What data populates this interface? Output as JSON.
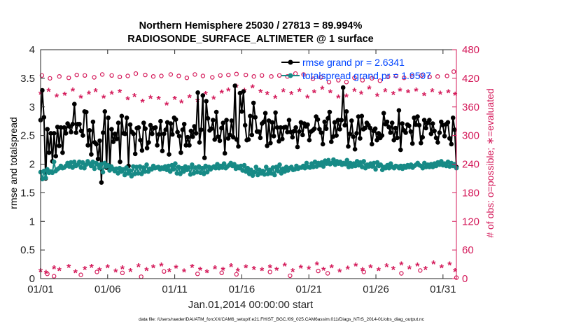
{
  "chart_data": {
    "type": "line",
    "title": "Northern Hemisphere 25030 / 27813 = 89.994%",
    "subtitle": "RADIOSONDE_SURFACE_ALTIMETER @ 1 surface",
    "xlabel": "Jan.01,2014 00:00:00 start",
    "ylabel": "rmse and totalspread",
    "ylabel_right": "# of obs: o=possible; ∗=evaluated",
    "footnote": "data file: /Users/raeder/DAI/ATM_forcXX/CAM6_setup/f.e21.FHIST_BGC.f09_025.CAM6assim.011/Diags_NTrS_2014-01/obs_diag_output.nc",
    "xlim": [
      0,
      31
    ],
    "ylim": [
      0,
      4
    ],
    "ylim_right": [
      0,
      480
    ],
    "xtick_values": [
      0,
      5,
      10,
      15,
      20,
      25,
      30
    ],
    "xtick_labels": [
      "01/01",
      "01/06",
      "01/11",
      "01/16",
      "01/21",
      "01/26",
      "01/31"
    ],
    "ytick_labels": [
      "0",
      "0.5",
      "1",
      "1.5",
      "2",
      "2.5",
      "3",
      "3.5",
      "4"
    ],
    "ytick_labels_right": [
      "0",
      "60",
      "120",
      "180",
      "240",
      "300",
      "360",
      "420",
      "480"
    ],
    "colors": {
      "rmse": "#000000",
      "spread": "#178a86",
      "obs": "#d41a5a",
      "legend_text": "#0044ff"
    },
    "series": [
      {
        "name": "rmse grand pr = 2.6341",
        "values": [
          2.77,
          3.29,
          2.82,
          1.75,
          2.61,
          2.2,
          2.54,
          2.05,
          2.54,
          2.14,
          2.65,
          2.32,
          2.64,
          2.2,
          2.64,
          2.54,
          2.71,
          2.66,
          2.56,
          2.7,
          3.05,
          2.55,
          2.7,
          2.7,
          2.58,
          2.5,
          2.92,
          2.91,
          2.33,
          2.59,
          2.17,
          2.74,
          2.38,
          2.35,
          2.09,
          2.41,
          1.68,
          2.55,
          2.92,
          1.94,
          2.81,
          1.92,
          2.61,
          2.39,
          2.53,
          2.44,
          2.72,
          2.04,
          2.84,
          2.54,
          2.53,
          2.81,
          1.97,
          2.69,
          2.56,
          2.53,
          2.18,
          2.63,
          2.64,
          2.42,
          2.24,
          2.72,
          2.62,
          2.28,
          2.38,
          2.68,
          2.53,
          2.63,
          2.64,
          2.33,
          2.52,
          2.75,
          2.23,
          2.53,
          2.6,
          2.73,
          2.17,
          2.71,
          2.52,
          2.81,
          2.78,
          2.56,
          2.49,
          2.2,
          2.6,
          2.7,
          2.33,
          2.47,
          2.33,
          2.58,
          2.48,
          2.66,
          2.54,
          3.25,
          2.38,
          2.6,
          3.2,
          2.11,
          3.1,
          2.8,
          2.59,
          2.62,
          2.77,
          2.43,
          2.91,
          2.48,
          2.41,
          2.63,
          2.72,
          2.19,
          2.77,
          2.45,
          2.51,
          2.76,
          2.47,
          3.37,
          2.43,
          2.31,
          3.24,
          2.92,
          3.27,
          2.68,
          2.42,
          2.43,
          2.84,
          2.51,
          3.07,
          2.82,
          2.57,
          2.57,
          2.46,
          2.71,
          2.74,
          2.89,
          2.32,
          2.76,
          2.37,
          2.73,
          2.49,
          2.9,
          2.64,
          2.4,
          2.64,
          2.44,
          2.64,
          2.65,
          2.56,
          2.77,
          2.56,
          2.47,
          2.58,
          2.64,
          2.3,
          2.57,
          2.73,
          2.51,
          2.71,
          2.66,
          2.69,
          2.42,
          2.57,
          2.59,
          2.62,
          2.83,
          2.78,
          2.61,
          2.55,
          2.35,
          2.74,
          2.62,
          2.8,
          2.91,
          2.39,
          2.48,
          2.73,
          2.5,
          2.77,
          2.61,
          2.77,
          3.34,
          2.68,
          2.92,
          2.31,
          2.53,
          2.76,
          2.48,
          2.26,
          2.54,
          2.83,
          2.45,
          2.84,
          2.61,
          2.63,
          2.72,
          2.68,
          2.63,
          2.35,
          2.58,
          2.62,
          2.42,
          2.54,
          2.46,
          2.5,
          2.89,
          2.7,
          2.74,
          2.65,
          2.55,
          2.72,
          2.42,
          2.63,
          2.46,
          2.94,
          2.25,
          2.71,
          2.59,
          2.55,
          2.69,
          2.67,
          2.57,
          2.36,
          2.81,
          2.69,
          2.83,
          2.68,
          2.37,
          2.47,
          2.77,
          2.63,
          2.72,
          2.77,
          2.53,
          2.71,
          2.58,
          2.46,
          2.38,
          2.55,
          2.74,
          2.68,
          2.49,
          2.7,
          2.73,
          2.45,
          2.35,
          2.81,
          2.6,
          1.95
        ]
      },
      {
        "name": "totalspread grand pr = 1.9597",
        "values": [
          1.86,
          1.74,
          1.88,
          1.76,
          1.91,
          1.85,
          1.87,
          1.85,
          2.04,
          1.88,
          1.91,
          1.93,
          1.97,
          1.93,
          1.94,
          1.97,
          2.02,
          1.96,
          2.03,
          1.94,
          2.04,
          1.97,
          1.99,
          2.04,
          1.94,
          2.03,
          1.93,
          1.99,
          2.05,
          2.01,
          1.97,
          2.04,
          1.92,
          2.02,
          1.99,
          1.93,
          2.0,
          1.86,
          2.02,
          1.96,
          1.98,
          1.89,
          1.96,
          1.92,
          1.88,
          1.92,
          1.84,
          1.93,
          1.87,
          1.91,
          1.81,
          1.94,
          1.84,
          1.89,
          1.79,
          1.96,
          1.83,
          1.95,
          1.84,
          1.96,
          1.83,
          1.94,
          1.87,
          1.99,
          1.87,
          1.92,
          1.91,
          1.97,
          1.93,
          1.94,
          1.95,
          1.91,
          1.94,
          1.92,
          1.96,
          1.9,
          1.97,
          1.87,
          1.98,
          1.91,
          2.01,
          1.84,
          1.95,
          1.83,
          1.93,
          1.87,
          1.96,
          1.9,
          1.94,
          1.82,
          1.99,
          1.84,
          1.94,
          1.86,
          1.96,
          1.85,
          1.93,
          1.83,
          1.97,
          1.86,
          1.95,
          1.91,
          1.94,
          1.96,
          1.93,
          2.0,
          1.93,
          1.97,
          1.94,
          2.01,
          1.93,
          1.96,
          1.98,
          2.02,
          1.97,
          2.0,
          1.92,
          1.96,
          1.93,
          1.97,
          1.89,
          1.98,
          1.87,
          1.93,
          1.83,
          1.9,
          1.8,
          1.86,
          1.95,
          1.81,
          1.9,
          1.84,
          1.88,
          1.82,
          1.95,
          1.83,
          1.9,
          1.84,
          1.94,
          1.81,
          1.95,
          1.88,
          1.99,
          1.84,
          1.92,
          1.87,
          1.95,
          1.89,
          1.93,
          1.95,
          1.9,
          1.91,
          1.97,
          1.92,
          1.94,
          1.94,
          1.97,
          1.93,
          2.02,
          1.95,
          1.94,
          2.01,
          1.95,
          2.04,
          1.96,
          2.02,
          1.98,
          2.03,
          1.96,
          2.06,
          2.01,
          2.07,
          2.0,
          2.02,
          2.08,
          1.99,
          2.05,
          2.01,
          2.04,
          1.99,
          2.02,
          2.0,
          2.07,
          1.95,
          2.02,
          1.96,
          2.01,
          1.97,
          2.05,
          1.98,
          2.03,
          1.95,
          2.05,
          1.93,
          1.99,
          1.96,
          2.01,
          1.96,
          2.02,
          1.91,
          2.03,
          1.97,
          1.99,
          1.9,
          1.95,
          1.93,
          1.98,
          1.93,
          2.01,
          1.95,
          1.93,
          1.97,
          1.96,
          1.93,
          1.97,
          1.92,
          1.97,
          1.94,
          1.98,
          1.95,
          1.99,
          1.94,
          1.97,
          1.99,
          2.02,
          1.98,
          1.97,
          1.93,
          2.02,
          1.95,
          1.99,
          1.95,
          2.0,
          1.95,
          2.01,
          1.97,
          2.03,
          1.99,
          2.05,
          1.98,
          2.01,
          1.97,
          2.04,
          1.96,
          2.02,
          1.97,
          2.0,
          1.93
        ]
      }
    ],
    "obs_possible": [
      {
        "x": 0.1,
        "y": 426
      },
      {
        "x": 0.7,
        "y": 420
      },
      {
        "x": 1.4,
        "y": 424
      },
      {
        "x": 2.1,
        "y": 421
      },
      {
        "x": 2.7,
        "y": 427
      },
      {
        "x": 3.3,
        "y": 426
      },
      {
        "x": 4.0,
        "y": 422
      },
      {
        "x": 4.6,
        "y": 428
      },
      {
        "x": 5.3,
        "y": 426
      },
      {
        "x": 5.9,
        "y": 423
      },
      {
        "x": 6.5,
        "y": 425
      },
      {
        "x": 7.1,
        "y": 430
      },
      {
        "x": 7.8,
        "y": 427
      },
      {
        "x": 8.4,
        "y": 424
      },
      {
        "x": 9.0,
        "y": 425
      },
      {
        "x": 9.7,
        "y": 428
      },
      {
        "x": 10.3,
        "y": 425
      },
      {
        "x": 10.9,
        "y": 421
      },
      {
        "x": 11.5,
        "y": 428
      },
      {
        "x": 12.1,
        "y": 425
      },
      {
        "x": 12.8,
        "y": 422
      },
      {
        "x": 13.4,
        "y": 426
      },
      {
        "x": 14.0,
        "y": 427
      },
      {
        "x": 14.6,
        "y": 429
      },
      {
        "x": 15.3,
        "y": 427
      },
      {
        "x": 15.9,
        "y": 424
      },
      {
        "x": 16.5,
        "y": 426
      },
      {
        "x": 17.2,
        "y": 424
      },
      {
        "x": 17.8,
        "y": 426
      },
      {
        "x": 18.4,
        "y": 424
      },
      {
        "x": 19.0,
        "y": 430
      },
      {
        "x": 19.6,
        "y": 428
      },
      {
        "x": 20.3,
        "y": 419
      },
      {
        "x": 20.9,
        "y": 422
      },
      {
        "x": 21.5,
        "y": 412
      },
      {
        "x": 22.2,
        "y": 416
      },
      {
        "x": 22.8,
        "y": 412
      },
      {
        "x": 23.4,
        "y": 421
      },
      {
        "x": 24.0,
        "y": 416
      },
      {
        "x": 24.7,
        "y": 420
      },
      {
        "x": 25.3,
        "y": 415
      },
      {
        "x": 25.9,
        "y": 423
      },
      {
        "x": 26.5,
        "y": 425
      },
      {
        "x": 27.1,
        "y": 421
      },
      {
        "x": 27.7,
        "y": 424
      },
      {
        "x": 28.4,
        "y": 426
      },
      {
        "x": 29.0,
        "y": 423
      },
      {
        "x": 29.6,
        "y": 424
      },
      {
        "x": 30.3,
        "y": 425
      },
      {
        "x": 30.8,
        "y": 434
      },
      {
        "x": 0.5,
        "y": 10
      },
      {
        "x": 1.0,
        "y": 5
      },
      {
        "x": 3.0,
        "y": 8
      },
      {
        "x": 4.2,
        "y": 14
      },
      {
        "x": 6.1,
        "y": 12
      },
      {
        "x": 7.5,
        "y": 4
      },
      {
        "x": 9.2,
        "y": 15
      },
      {
        "x": 11.7,
        "y": 10
      },
      {
        "x": 13.5,
        "y": 12
      },
      {
        "x": 14.6,
        "y": 9
      },
      {
        "x": 17.1,
        "y": 14
      },
      {
        "x": 18.6,
        "y": 6
      },
      {
        "x": 20.7,
        "y": 16
      },
      {
        "x": 21.4,
        "y": 11
      },
      {
        "x": 24.1,
        "y": 14
      },
      {
        "x": 26.9,
        "y": 11
      },
      {
        "x": 28.3,
        "y": 17
      },
      {
        "x": 31.0,
        "y": 2
      }
    ],
    "obs_evaluated": [
      {
        "x": 0.0,
        "y": 14
      },
      {
        "x": 0.4,
        "y": 10
      },
      {
        "x": 1.0,
        "y": 20
      },
      {
        "x": 1.4,
        "y": 16
      },
      {
        "x": 2.1,
        "y": 23
      },
      {
        "x": 2.6,
        "y": 12
      },
      {
        "x": 3.3,
        "y": 18
      },
      {
        "x": 3.8,
        "y": 23
      },
      {
        "x": 4.4,
        "y": 16
      },
      {
        "x": 5.0,
        "y": 22
      },
      {
        "x": 5.6,
        "y": 13
      },
      {
        "x": 6.1,
        "y": 20
      },
      {
        "x": 6.7,
        "y": 14
      },
      {
        "x": 7.3,
        "y": 24
      },
      {
        "x": 7.9,
        "y": 16
      },
      {
        "x": 8.4,
        "y": 22
      },
      {
        "x": 9.0,
        "y": 26
      },
      {
        "x": 9.6,
        "y": 14
      },
      {
        "x": 10.1,
        "y": 21
      },
      {
        "x": 10.7,
        "y": 13
      },
      {
        "x": 11.3,
        "y": 23
      },
      {
        "x": 11.9,
        "y": 17
      },
      {
        "x": 12.4,
        "y": 12
      },
      {
        "x": 13.0,
        "y": 20
      },
      {
        "x": 13.6,
        "y": 17
      },
      {
        "x": 14.2,
        "y": 24
      },
      {
        "x": 14.7,
        "y": 15
      },
      {
        "x": 15.3,
        "y": 22
      },
      {
        "x": 15.9,
        "y": 18
      },
      {
        "x": 16.5,
        "y": 16
      },
      {
        "x": 17.1,
        "y": 22
      },
      {
        "x": 17.6,
        "y": 17
      },
      {
        "x": 18.2,
        "y": 26
      },
      {
        "x": 18.8,
        "y": 14
      },
      {
        "x": 19.4,
        "y": 21
      },
      {
        "x": 20.0,
        "y": 19
      },
      {
        "x": 20.6,
        "y": 28
      },
      {
        "x": 21.1,
        "y": 17
      },
      {
        "x": 21.7,
        "y": 22
      },
      {
        "x": 22.3,
        "y": 13
      },
      {
        "x": 22.9,
        "y": 19
      },
      {
        "x": 23.5,
        "y": 26
      },
      {
        "x": 24.0,
        "y": 16
      },
      {
        "x": 24.6,
        "y": 22
      },
      {
        "x": 25.2,
        "y": 16
      },
      {
        "x": 25.8,
        "y": 24
      },
      {
        "x": 26.3,
        "y": 18
      },
      {
        "x": 26.9,
        "y": 28
      },
      {
        "x": 27.5,
        "y": 20
      },
      {
        "x": 28.1,
        "y": 26
      },
      {
        "x": 28.7,
        "y": 18
      },
      {
        "x": 29.3,
        "y": 30
      },
      {
        "x": 29.9,
        "y": 22
      },
      {
        "x": 30.5,
        "y": 28
      },
      {
        "x": 30.9,
        "y": 14
      },
      {
        "x": 0.0,
        "y": 386
      },
      {
        "x": 0.6,
        "y": 392
      },
      {
        "x": 1.2,
        "y": 380
      },
      {
        "x": 1.8,
        "y": 384
      },
      {
        "x": 2.4,
        "y": 393
      },
      {
        "x": 3.0,
        "y": 378
      },
      {
        "x": 3.6,
        "y": 386
      },
      {
        "x": 4.1,
        "y": 391
      },
      {
        "x": 4.7,
        "y": 378
      },
      {
        "x": 5.3,
        "y": 386
      },
      {
        "x": 5.9,
        "y": 390
      },
      {
        "x": 6.5,
        "y": 374
      },
      {
        "x": 7.0,
        "y": 381
      },
      {
        "x": 7.6,
        "y": 369
      },
      {
        "x": 8.2,
        "y": 377
      },
      {
        "x": 8.8,
        "y": 375
      },
      {
        "x": 9.4,
        "y": 363
      },
      {
        "x": 10.0,
        "y": 375
      },
      {
        "x": 10.5,
        "y": 368
      },
      {
        "x": 11.1,
        "y": 379
      },
      {
        "x": 11.7,
        "y": 371
      },
      {
        "x": 12.3,
        "y": 385
      },
      {
        "x": 12.9,
        "y": 376
      },
      {
        "x": 13.5,
        "y": 388
      },
      {
        "x": 14.0,
        "y": 393
      },
      {
        "x": 14.6,
        "y": 401
      },
      {
        "x": 15.2,
        "y": 392
      },
      {
        "x": 15.8,
        "y": 399
      },
      {
        "x": 16.4,
        "y": 390
      },
      {
        "x": 16.9,
        "y": 385
      },
      {
        "x": 17.5,
        "y": 377
      },
      {
        "x": 18.1,
        "y": 391
      },
      {
        "x": 18.7,
        "y": 385
      },
      {
        "x": 19.3,
        "y": 392
      },
      {
        "x": 19.9,
        "y": 378
      },
      {
        "x": 20.4,
        "y": 389
      },
      {
        "x": 21.0,
        "y": 396
      },
      {
        "x": 21.6,
        "y": 389
      },
      {
        "x": 22.2,
        "y": 378
      },
      {
        "x": 22.8,
        "y": 380
      },
      {
        "x": 23.4,
        "y": 392
      },
      {
        "x": 23.9,
        "y": 386
      },
      {
        "x": 24.5,
        "y": 397
      },
      {
        "x": 25.1,
        "y": 382
      },
      {
        "x": 25.7,
        "y": 391
      },
      {
        "x": 26.3,
        "y": 385
      },
      {
        "x": 26.8,
        "y": 393
      },
      {
        "x": 27.4,
        "y": 389
      },
      {
        "x": 28.0,
        "y": 393
      },
      {
        "x": 28.6,
        "y": 383
      },
      {
        "x": 29.2,
        "y": 391
      },
      {
        "x": 29.8,
        "y": 386
      },
      {
        "x": 30.4,
        "y": 389
      },
      {
        "x": 30.9,
        "y": 384
      }
    ],
    "legend": [
      "rmse grand pr = 2.6341",
      "totalspread grand pr = 1.9597"
    ],
    "legend_location": "top-right"
  }
}
